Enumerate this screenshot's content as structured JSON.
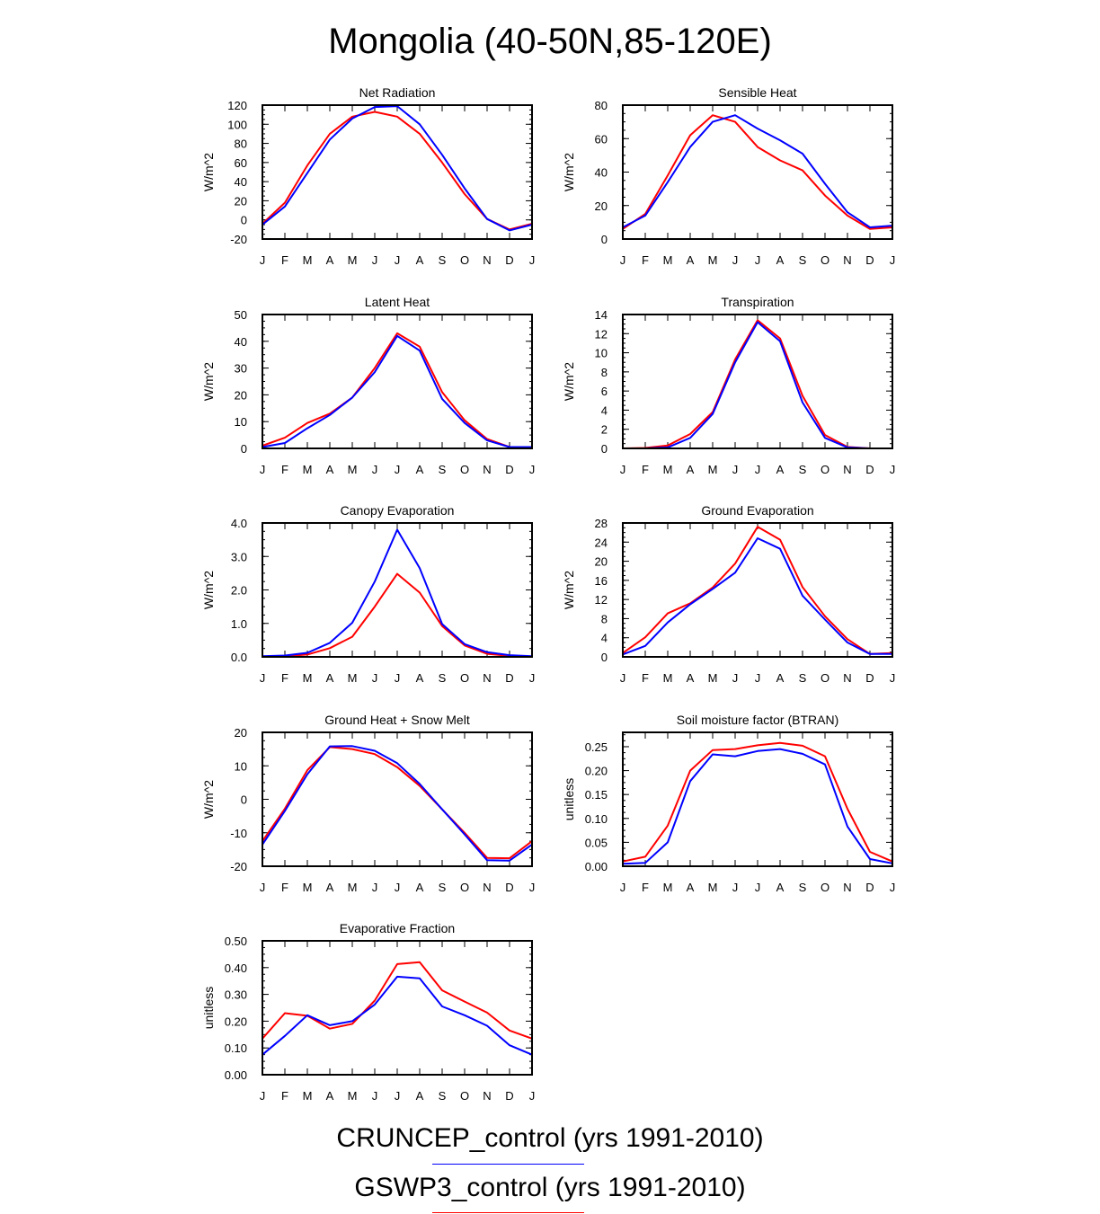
{
  "title": "Mongolia (40-50N,85-120E)",
  "month_labels": [
    "J",
    "F",
    "M",
    "A",
    "M",
    "J",
    "J",
    "A",
    "S",
    "O",
    "N",
    "D",
    "J"
  ],
  "colors": {
    "series_a": "#0000ff",
    "series_b": "#ff0000",
    "axis": "#000000"
  },
  "legend": [
    {
      "label": "CRUNCEP_control (yrs 1991-2010)",
      "color": "#0000ff"
    },
    {
      "label": "GSWP3_control (yrs 1991-2010)",
      "color": "#ff0000"
    }
  ],
  "chart_data": [
    {
      "type": "line",
      "title": "Net Radiation",
      "ylabel": "W/m^2",
      "ylim": [
        -20,
        120
      ],
      "ticks": [
        -20,
        0,
        20,
        40,
        60,
        80,
        100,
        120
      ],
      "tick_labels": [
        "-20",
        "0",
        "20",
        "40",
        "60",
        "80",
        "100",
        "120"
      ],
      "series": [
        {
          "name": "CRUNCEP_control",
          "color": "#0000ff",
          "values": [
            -5,
            14,
            49,
            84,
            106,
            118,
            119,
            100,
            68,
            33,
            1,
            -11,
            -5
          ]
        },
        {
          "name": "GSWP3_control",
          "color": "#ff0000",
          "values": [
            -4,
            18,
            57,
            90,
            108,
            113,
            108,
            90,
            60,
            27,
            1,
            -10,
            -4
          ]
        }
      ]
    },
    {
      "type": "line",
      "title": "Sensible Heat",
      "ylabel": "W/m^2",
      "ylim": [
        0,
        80
      ],
      "ticks": [
        0,
        20,
        40,
        60,
        80
      ],
      "tick_labels": [
        "0",
        "20",
        "40",
        "60",
        "80"
      ],
      "series": [
        {
          "name": "CRUNCEP_control",
          "color": "#0000ff",
          "values": [
            7,
            14,
            34,
            55,
            70,
            74,
            66,
            59,
            51,
            33,
            16,
            7,
            8
          ]
        },
        {
          "name": "GSWP3_control",
          "color": "#ff0000",
          "values": [
            6,
            15,
            38,
            62,
            74,
            70,
            55,
            47,
            41,
            26,
            14,
            6,
            7
          ]
        }
      ]
    },
    {
      "type": "line",
      "title": "Latent Heat",
      "ylabel": "W/m^2",
      "ylim": [
        0,
        50
      ],
      "ticks": [
        0,
        10,
        20,
        30,
        40,
        50
      ],
      "tick_labels": [
        "0",
        "10",
        "20",
        "30",
        "40",
        "50"
      ],
      "series": [
        {
          "name": "CRUNCEP_control",
          "color": "#0000ff",
          "values": [
            0.5,
            2,
            7.5,
            12.5,
            19,
            28.5,
            42,
            36.5,
            18.5,
            9.5,
            3,
            0.5,
            0.5
          ]
        },
        {
          "name": "GSWP3_control",
          "color": "#ff0000",
          "values": [
            1,
            4,
            9.5,
            13,
            19,
            30,
            43,
            38,
            21,
            10.5,
            3.5,
            0.5,
            0.5
          ]
        }
      ]
    },
    {
      "type": "line",
      "title": "Transpiration",
      "ylabel": "W/m^2",
      "ylim": [
        0,
        14
      ],
      "ticks": [
        0,
        2,
        4,
        6,
        8,
        10,
        12,
        14
      ],
      "tick_labels": [
        "0",
        "2",
        "4",
        "6",
        "8",
        "10",
        "12",
        "14"
      ],
      "series": [
        {
          "name": "CRUNCEP_control",
          "color": "#0000ff",
          "values": [
            0,
            0,
            0.1,
            1.1,
            3.6,
            9.0,
            13.2,
            11.2,
            4.8,
            1.1,
            0.1,
            0,
            0
          ]
        },
        {
          "name": "GSWP3_control",
          "color": "#ff0000",
          "values": [
            0,
            0.05,
            0.3,
            1.5,
            3.8,
            9.3,
            13.4,
            11.5,
            5.5,
            1.4,
            0.15,
            0,
            0
          ]
        }
      ]
    },
    {
      "type": "line",
      "title": "Canopy Evaporation",
      "ylabel": "W/m^2",
      "ylim": [
        0,
        4
      ],
      "ticks": [
        0,
        1,
        2,
        3,
        4
      ],
      "tick_labels": [
        "0.0",
        "1.0",
        "2.0",
        "3.0",
        "4.0"
      ],
      "series": [
        {
          "name": "CRUNCEP_control",
          "color": "#0000ff",
          "values": [
            0.02,
            0.04,
            0.12,
            0.42,
            1.02,
            2.25,
            3.8,
            2.65,
            0.98,
            0.38,
            0.14,
            0.05,
            0.02
          ]
        },
        {
          "name": "GSWP3_control",
          "color": "#ff0000",
          "values": [
            0.01,
            0.02,
            0.07,
            0.26,
            0.6,
            1.5,
            2.48,
            1.92,
            0.92,
            0.34,
            0.09,
            0.03,
            0.01
          ]
        }
      ]
    },
    {
      "type": "line",
      "title": "Ground Evaporation",
      "ylabel": "W/m^2",
      "ylim": [
        0,
        28
      ],
      "ticks": [
        0,
        4,
        8,
        12,
        16,
        20,
        24,
        28
      ],
      "tick_labels": [
        "0",
        "4",
        "8",
        "12",
        "16",
        "20",
        "24",
        "28"
      ],
      "series": [
        {
          "name": "CRUNCEP_control",
          "color": "#0000ff",
          "values": [
            0.5,
            2.3,
            7.2,
            11,
            14.2,
            17.6,
            24.8,
            22.6,
            12.8,
            7.8,
            3,
            0.6,
            0.6
          ]
        },
        {
          "name": "GSWP3_control",
          "color": "#ff0000",
          "values": [
            0.8,
            4.1,
            9.1,
            11.2,
            14.5,
            19.5,
            27.2,
            24.5,
            14.6,
            8.5,
            3.7,
            0.6,
            0.8
          ]
        }
      ]
    },
    {
      "type": "line",
      "title": "Ground Heat + Snow Melt",
      "ylabel": "W/m^2",
      "ylim": [
        -20,
        20
      ],
      "ticks": [
        -20,
        -10,
        0,
        10,
        20
      ],
      "tick_labels": [
        "-20",
        "-10",
        "0",
        "10",
        "20"
      ],
      "series": [
        {
          "name": "CRUNCEP_control",
          "color": "#0000ff",
          "values": [
            -13.5,
            -3.5,
            7.5,
            15.8,
            15.9,
            14.5,
            10.8,
            4.6,
            -3,
            -10.5,
            -18.2,
            -18.3,
            -13.5
          ]
        },
        {
          "name": "GSWP3_control",
          "color": "#ff0000",
          "values": [
            -12.5,
            -2.8,
            8.7,
            15.6,
            15.0,
            13.5,
            9.6,
            4.0,
            -3,
            -10,
            -17.5,
            -17.6,
            -12.5
          ]
        }
      ]
    },
    {
      "type": "line",
      "title": "Soil moisture factor (BTRAN)",
      "ylabel": "unitless",
      "ylim": [
        0,
        0.28
      ],
      "ticks": [
        0,
        0.05,
        0.1,
        0.15,
        0.2,
        0.25
      ],
      "tick_labels": [
        "0.00",
        "0.05",
        "0.10",
        "0.15",
        "0.20",
        "0.25"
      ],
      "series": [
        {
          "name": "CRUNCEP_control",
          "color": "#0000ff",
          "values": [
            0.005,
            0.007,
            0.05,
            0.178,
            0.234,
            0.23,
            0.241,
            0.245,
            0.235,
            0.213,
            0.083,
            0.015,
            0.006
          ]
        },
        {
          "name": "GSWP3_control",
          "color": "#ff0000",
          "values": [
            0.01,
            0.02,
            0.085,
            0.2,
            0.243,
            0.245,
            0.253,
            0.258,
            0.252,
            0.23,
            0.12,
            0.03,
            0.01
          ]
        }
      ]
    },
    {
      "type": "line",
      "title": "Evaporative Fraction",
      "ylabel": "unitless",
      "ylim": [
        0,
        0.5
      ],
      "ticks": [
        0,
        0.1,
        0.2,
        0.3,
        0.4,
        0.5
      ],
      "tick_labels": [
        "0.00",
        "0.10",
        "0.20",
        "0.30",
        "0.40",
        "0.50"
      ],
      "series": [
        {
          "name": "CRUNCEP_control",
          "color": "#0000ff",
          "values": [
            0.075,
            0.145,
            0.222,
            0.185,
            0.2,
            0.262,
            0.366,
            0.36,
            0.255,
            0.222,
            0.183,
            0.11,
            0.075
          ]
        },
        {
          "name": "GSWP3_control",
          "color": "#ff0000",
          "values": [
            0.135,
            0.23,
            0.22,
            0.172,
            0.19,
            0.277,
            0.413,
            0.42,
            0.315,
            0.273,
            0.232,
            0.165,
            0.135
          ]
        }
      ]
    }
  ]
}
